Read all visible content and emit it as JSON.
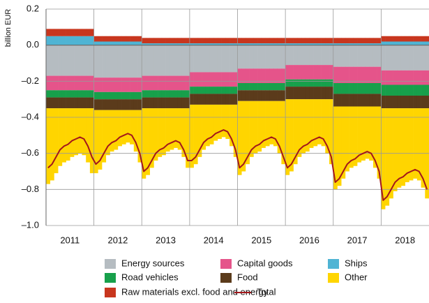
{
  "chart_data": {
    "type": "bar",
    "stacked": true,
    "y_label": "billion EUR",
    "categories": [
      "2011",
      null,
      null,
      null,
      null,
      null,
      null,
      null,
      null,
      null,
      null,
      null,
      "2012",
      null,
      null,
      null,
      null,
      null,
      null,
      null,
      null,
      null,
      null,
      null,
      "2013",
      null,
      null,
      null,
      null,
      null,
      null,
      null,
      null,
      null,
      null,
      null,
      "2014",
      null,
      null,
      null,
      null,
      null,
      null,
      null,
      null,
      null,
      null,
      null,
      "2015",
      null,
      null,
      null,
      null,
      null,
      null,
      null,
      null,
      null,
      null,
      null,
      "2016",
      null,
      null,
      null,
      null,
      null,
      null,
      null,
      null,
      null,
      null,
      null,
      "2017",
      null,
      null,
      null,
      null,
      null,
      null,
      null,
      null,
      null,
      null,
      null,
      "2018",
      null,
      null,
      null,
      null,
      null,
      null,
      null,
      null,
      null,
      null,
      null
    ],
    "ylim": [
      -1.0,
      0.2
    ],
    "yticks": [
      0.2,
      {
        "value": 0,
        "label": "0.0"
      },
      {
        "value": -0.2,
        "label": "–0.2"
      },
      {
        "value": -0.4,
        "label": "–0.4"
      },
      {
        "value": -0.6,
        "label": "–0.6"
      },
      {
        "value": -0.8,
        "label": "–0.8"
      },
      {
        "value": -1.0,
        "label": "–1.0"
      }
    ],
    "grid": true,
    "series": [
      {
        "name": "Ships",
        "color": "#4fb4d4",
        "values": [
          0.05,
          0.05,
          0.05,
          0.05,
          0.05,
          0.05,
          0.05,
          0.05,
          0.05,
          0.05,
          0.05,
          0.05,
          0.02,
          0.02,
          0.02,
          0.02,
          0.02,
          0.02,
          0.02,
          0.02,
          0.02,
          0.02,
          0.02,
          0.02,
          0.01,
          0.01,
          0.01,
          0.01,
          0.01,
          0.01,
          0.01,
          0.01,
          0.01,
          0.01,
          0.01,
          0.01,
          0.01,
          0.01,
          0.01,
          0.01,
          0.01,
          0.01,
          0.01,
          0.01,
          0.01,
          0.01,
          0.01,
          0.01,
          0.01,
          0.01,
          0.01,
          0.01,
          0.01,
          0.01,
          0.01,
          0.01,
          0.01,
          0.01,
          0.01,
          0.01,
          0.01,
          0.01,
          0.01,
          0.01,
          0.01,
          0.01,
          0.01,
          0.01,
          0.01,
          0.01,
          0.01,
          0.01,
          0.01,
          0.01,
          0.01,
          0.01,
          0.01,
          0.01,
          0.01,
          0.01,
          0.01,
          0.01,
          0.01,
          0.01,
          0.02,
          0.02,
          0.02,
          0.02,
          0.02,
          0.02,
          0.02,
          0.02,
          0.02,
          0.02,
          0.02,
          0.02
        ]
      },
      {
        "name": "Raw materials excl. food and energy",
        "color": "#c8361e",
        "values": [
          0.04,
          0.04,
          0.04,
          0.04,
          0.04,
          0.04,
          0.04,
          0.04,
          0.04,
          0.04,
          0.04,
          0.04,
          0.03,
          0.03,
          0.03,
          0.03,
          0.03,
          0.03,
          0.03,
          0.03,
          0.03,
          0.03,
          0.03,
          0.03,
          0.03,
          0.03,
          0.03,
          0.03,
          0.03,
          0.03,
          0.03,
          0.03,
          0.03,
          0.03,
          0.03,
          0.03,
          0.03,
          0.03,
          0.03,
          0.03,
          0.03,
          0.03,
          0.03,
          0.03,
          0.03,
          0.03,
          0.03,
          0.03,
          0.03,
          0.03,
          0.03,
          0.03,
          0.03,
          0.03,
          0.03,
          0.03,
          0.03,
          0.03,
          0.03,
          0.03,
          0.03,
          0.03,
          0.03,
          0.03,
          0.03,
          0.03,
          0.03,
          0.03,
          0.03,
          0.03,
          0.03,
          0.03,
          0.03,
          0.03,
          0.03,
          0.03,
          0.03,
          0.03,
          0.03,
          0.03,
          0.03,
          0.03,
          0.03,
          0.03,
          0.03,
          0.03,
          0.03,
          0.03,
          0.03,
          0.03,
          0.03,
          0.03,
          0.03,
          0.03,
          0.03,
          0.03
        ]
      },
      {
        "name": "Energy sources",
        "color": "#b5bcc1",
        "values": [
          -0.17,
          -0.17,
          -0.17,
          -0.17,
          -0.17,
          -0.17,
          -0.17,
          -0.17,
          -0.17,
          -0.17,
          -0.17,
          -0.17,
          -0.18,
          -0.18,
          -0.18,
          -0.18,
          -0.18,
          -0.18,
          -0.18,
          -0.18,
          -0.18,
          -0.18,
          -0.18,
          -0.18,
          -0.17,
          -0.17,
          -0.17,
          -0.17,
          -0.17,
          -0.17,
          -0.17,
          -0.17,
          -0.17,
          -0.17,
          -0.17,
          -0.17,
          -0.15,
          -0.15,
          -0.15,
          -0.15,
          -0.15,
          -0.15,
          -0.15,
          -0.15,
          -0.15,
          -0.15,
          -0.15,
          -0.15,
          -0.13,
          -0.13,
          -0.13,
          -0.13,
          -0.13,
          -0.13,
          -0.13,
          -0.13,
          -0.13,
          -0.13,
          -0.13,
          -0.13,
          -0.11,
          -0.11,
          -0.11,
          -0.11,
          -0.11,
          -0.11,
          -0.11,
          -0.11,
          -0.11,
          -0.11,
          -0.11,
          -0.11,
          -0.12,
          -0.12,
          -0.12,
          -0.12,
          -0.12,
          -0.12,
          -0.12,
          -0.12,
          -0.12,
          -0.12,
          -0.12,
          -0.12,
          -0.14,
          -0.14,
          -0.14,
          -0.14,
          -0.14,
          -0.14,
          -0.14,
          -0.14,
          -0.14,
          -0.14,
          -0.14,
          -0.14
        ]
      },
      {
        "name": "Capital goods",
        "color": "#e5548a",
        "values": [
          -0.08,
          -0.08,
          -0.08,
          -0.08,
          -0.08,
          -0.08,
          -0.08,
          -0.08,
          -0.08,
          -0.08,
          -0.08,
          -0.08,
          -0.08,
          -0.08,
          -0.08,
          -0.08,
          -0.08,
          -0.08,
          -0.08,
          -0.08,
          -0.08,
          -0.08,
          -0.08,
          -0.08,
          -0.08,
          -0.08,
          -0.08,
          -0.08,
          -0.08,
          -0.08,
          -0.08,
          -0.08,
          -0.08,
          -0.08,
          -0.08,
          -0.08,
          -0.08,
          -0.08,
          -0.08,
          -0.08,
          -0.08,
          -0.08,
          -0.08,
          -0.08,
          -0.08,
          -0.08,
          -0.08,
          -0.08,
          -0.08,
          -0.08,
          -0.08,
          -0.08,
          -0.08,
          -0.08,
          -0.08,
          -0.08,
          -0.08,
          -0.08,
          -0.08,
          -0.08,
          -0.08,
          -0.08,
          -0.08,
          -0.08,
          -0.08,
          -0.08,
          -0.08,
          -0.08,
          -0.08,
          -0.08,
          -0.08,
          -0.08,
          -0.09,
          -0.09,
          -0.09,
          -0.09,
          -0.09,
          -0.09,
          -0.09,
          -0.09,
          -0.09,
          -0.09,
          -0.09,
          -0.09,
          -0.08,
          -0.08,
          -0.08,
          -0.08,
          -0.08,
          -0.08,
          -0.08,
          -0.08,
          -0.08,
          -0.08,
          -0.08,
          -0.08
        ]
      },
      {
        "name": "Road vehicles",
        "color": "#17a04b",
        "values": [
          -0.04,
          -0.04,
          -0.04,
          -0.04,
          -0.04,
          -0.04,
          -0.04,
          -0.04,
          -0.04,
          -0.04,
          -0.04,
          -0.04,
          -0.04,
          -0.04,
          -0.04,
          -0.04,
          -0.04,
          -0.04,
          -0.04,
          -0.04,
          -0.04,
          -0.04,
          -0.04,
          -0.04,
          -0.04,
          -0.04,
          -0.04,
          -0.04,
          -0.04,
          -0.04,
          -0.04,
          -0.04,
          -0.04,
          -0.04,
          -0.04,
          -0.04,
          -0.04,
          -0.04,
          -0.04,
          -0.04,
          -0.04,
          -0.04,
          -0.04,
          -0.04,
          -0.04,
          -0.04,
          -0.04,
          -0.04,
          -0.04,
          -0.04,
          -0.04,
          -0.04,
          -0.04,
          -0.04,
          -0.04,
          -0.04,
          -0.04,
          -0.04,
          -0.04,
          -0.04,
          -0.04,
          -0.04,
          -0.04,
          -0.04,
          -0.04,
          -0.04,
          -0.04,
          -0.04,
          -0.04,
          -0.04,
          -0.04,
          -0.04,
          -0.06,
          -0.06,
          -0.06,
          -0.06,
          -0.06,
          -0.06,
          -0.06,
          -0.06,
          -0.06,
          -0.06,
          -0.06,
          -0.06,
          -0.06,
          -0.06,
          -0.06,
          -0.06,
          -0.06,
          -0.06,
          -0.06,
          -0.06,
          -0.06,
          -0.06,
          -0.06,
          -0.06
        ]
      },
      {
        "name": "Food",
        "color": "#5b3b1b",
        "values": [
          -0.06,
          -0.06,
          -0.06,
          -0.06,
          -0.06,
          -0.06,
          -0.06,
          -0.06,
          -0.06,
          -0.06,
          -0.06,
          -0.06,
          -0.06,
          -0.06,
          -0.06,
          -0.06,
          -0.06,
          -0.06,
          -0.06,
          -0.06,
          -0.06,
          -0.06,
          -0.06,
          -0.06,
          -0.06,
          -0.06,
          -0.06,
          -0.06,
          -0.06,
          -0.06,
          -0.06,
          -0.06,
          -0.06,
          -0.06,
          -0.06,
          -0.06,
          -0.06,
          -0.06,
          -0.06,
          -0.06,
          -0.06,
          -0.06,
          -0.06,
          -0.06,
          -0.06,
          -0.06,
          -0.06,
          -0.06,
          -0.06,
          -0.06,
          -0.06,
          -0.06,
          -0.06,
          -0.06,
          -0.06,
          -0.06,
          -0.06,
          -0.06,
          -0.06,
          -0.06,
          -0.07,
          -0.07,
          -0.07,
          -0.07,
          -0.07,
          -0.07,
          -0.07,
          -0.07,
          -0.07,
          -0.07,
          -0.07,
          -0.07,
          -0.07,
          -0.07,
          -0.07,
          -0.07,
          -0.07,
          -0.07,
          -0.07,
          -0.07,
          -0.07,
          -0.07,
          -0.07,
          -0.07,
          -0.07,
          -0.07,
          -0.07,
          -0.07,
          -0.07,
          -0.07,
          -0.07,
          -0.07,
          -0.07,
          -0.07,
          -0.07,
          -0.07
        ]
      },
      {
        "name": "Other",
        "color": "#ffd500",
        "values": [
          -0.42,
          -0.4,
          -0.36,
          -0.32,
          -0.3,
          -0.29,
          -0.27,
          -0.26,
          -0.25,
          -0.26,
          -0.3,
          -0.36,
          -0.35,
          -0.33,
          -0.29,
          -0.25,
          -0.23,
          -0.22,
          -0.2,
          -0.19,
          -0.18,
          -0.19,
          -0.23,
          -0.29,
          -0.39,
          -0.37,
          -0.33,
          -0.29,
          -0.27,
          -0.26,
          -0.24,
          -0.23,
          -0.22,
          -0.23,
          -0.27,
          -0.33,
          -0.35,
          -0.33,
          -0.29,
          -0.25,
          -0.23,
          -0.22,
          -0.2,
          -0.19,
          -0.18,
          -0.19,
          -0.23,
          -0.29,
          -0.41,
          -0.39,
          -0.35,
          -0.31,
          -0.29,
          -0.28,
          -0.26,
          -0.25,
          -0.24,
          -0.25,
          -0.29,
          -0.35,
          -0.42,
          -0.4,
          -0.36,
          -0.32,
          -0.3,
          -0.29,
          -0.27,
          -0.26,
          -0.25,
          -0.26,
          -0.3,
          -0.36,
          -0.46,
          -0.44,
          -0.4,
          -0.36,
          -0.34,
          -0.33,
          -0.31,
          -0.3,
          -0.29,
          -0.3,
          -0.34,
          -0.4,
          -0.56,
          -0.54,
          -0.5,
          -0.46,
          -0.44,
          -0.43,
          -0.41,
          -0.4,
          -0.39,
          -0.4,
          -0.44,
          -0.5
        ]
      },
      {
        "name": "Total",
        "type": "line",
        "color": "#a3171b",
        "values": [
          -0.68,
          -0.66,
          -0.62,
          -0.58,
          -0.56,
          -0.55,
          -0.53,
          -0.52,
          -0.51,
          -0.52,
          -0.56,
          -0.62,
          -0.66,
          -0.64,
          -0.6,
          -0.56,
          -0.54,
          -0.53,
          -0.51,
          -0.5,
          -0.49,
          -0.5,
          -0.54,
          -0.6,
          -0.7,
          -0.68,
          -0.64,
          -0.6,
          -0.58,
          -0.57,
          -0.55,
          -0.54,
          -0.53,
          -0.54,
          -0.58,
          -0.64,
          -0.64,
          -0.62,
          -0.58,
          -0.54,
          -0.52,
          -0.51,
          -0.49,
          -0.48,
          -0.47,
          -0.48,
          -0.52,
          -0.58,
          -0.68,
          -0.66,
          -0.62,
          -0.58,
          -0.56,
          -0.55,
          -0.53,
          -0.52,
          -0.51,
          -0.52,
          -0.56,
          -0.62,
          -0.68,
          -0.66,
          -0.62,
          -0.58,
          -0.56,
          -0.55,
          -0.53,
          -0.52,
          -0.51,
          -0.52,
          -0.56,
          -0.62,
          -0.76,
          -0.74,
          -0.7,
          -0.66,
          -0.64,
          -0.63,
          -0.61,
          -0.6,
          -0.59,
          -0.6,
          -0.64,
          -0.7,
          -0.86,
          -0.84,
          -0.8,
          -0.76,
          -0.74,
          -0.73,
          -0.71,
          -0.7,
          -0.69,
          -0.7,
          -0.74,
          -0.8
        ]
      }
    ]
  }
}
